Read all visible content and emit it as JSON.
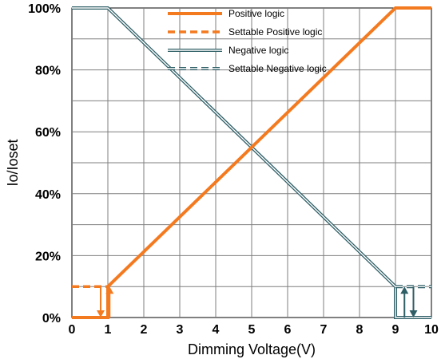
{
  "chart_data": {
    "type": "line",
    "xlabel": "Dimming Voltage(V)",
    "ylabel": "Io/Ioset",
    "xlim": [
      0,
      10
    ],
    "ylim": [
      0,
      100
    ],
    "x_ticks": [
      "0",
      "1",
      "2",
      "3",
      "4",
      "5",
      "6",
      "7",
      "8",
      "9",
      "10"
    ],
    "y_ticks": [
      "0%",
      "20%",
      "40%",
      "60%",
      "80%",
      "100%"
    ],
    "grid": true,
    "legend_position": "top-center",
    "colors": {
      "positive": "#F47A20",
      "negative": "#2E5E66"
    },
    "series": [
      {
        "name": "Positive logic",
        "style": "solid",
        "color": "#F47A20",
        "points": [
          [
            0,
            0
          ],
          [
            1,
            0
          ],
          [
            1,
            10
          ],
          [
            9,
            100
          ],
          [
            10,
            100
          ]
        ]
      },
      {
        "name": "Settable Positive logic",
        "style": "dashed",
        "color": "#F47A20",
        "points": [
          [
            0,
            10
          ],
          [
            1,
            10
          ]
        ]
      },
      {
        "name": "Negative logic",
        "style": "double",
        "color": "#2E5E66",
        "points": [
          [
            0,
            100
          ],
          [
            1,
            100
          ],
          [
            9,
            10
          ],
          [
            9,
            0
          ],
          [
            10,
            0
          ]
        ]
      },
      {
        "name": "Settable Negative logic",
        "style": "double-dashed",
        "color": "#2E5E66",
        "points": [
          [
            9,
            10
          ],
          [
            10,
            10
          ]
        ]
      }
    ],
    "arrows": [
      {
        "series": "Settable Positive logic",
        "x": 0.8,
        "from": 10,
        "to": 0
      },
      {
        "series": "Positive logic",
        "x": 1.05,
        "from": 0,
        "to": 10
      },
      {
        "series": "Negative logic",
        "x": 9.25,
        "from": 0,
        "to": 10
      },
      {
        "series": "Settable Negative logic",
        "x": 9.5,
        "from": 10,
        "to": 0
      }
    ]
  }
}
